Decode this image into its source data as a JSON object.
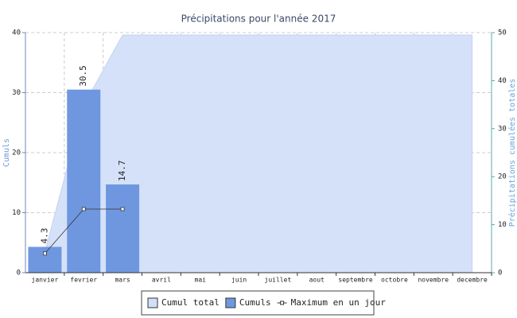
{
  "chart_data": {
    "type": "bar",
    "title": "Précipitations pour l'année 2017",
    "y_label": "Cumuls",
    "y2_label": "Précipitations cumulées totales",
    "categories": [
      "janvier",
      "fevrier",
      "mars",
      "avril",
      "mai",
      "juin",
      "juillet",
      "aout",
      "septembre",
      "octobre",
      "novembre",
      "decembre"
    ],
    "series": [
      {
        "name": "Cumul total",
        "type": "area",
        "axis": "y2",
        "color": "#d3dff8",
        "values": [
          4.3,
          34.8,
          49.5,
          49.5,
          49.5,
          49.5,
          49.5,
          49.5,
          49.5,
          49.5,
          49.5,
          49.5
        ]
      },
      {
        "name": "Cumuls",
        "type": "bar",
        "color": "#6f97e0",
        "values": [
          4.3,
          30.5,
          14.7,
          null,
          null,
          null,
          null,
          null,
          null,
          null,
          null,
          null
        ]
      },
      {
        "name": "Maximum en un jour",
        "type": "line",
        "color": "#333333",
        "values": [
          3.2,
          10.6,
          10.6,
          null,
          null,
          null,
          null,
          null,
          null,
          null,
          null,
          null
        ]
      }
    ],
    "ylim": [
      0,
      40
    ],
    "yticks": [
      0,
      10,
      20,
      30,
      40
    ],
    "y2lim": [
      0,
      50
    ],
    "y2ticks": [
      0,
      10,
      20,
      30,
      40,
      50
    ],
    "grid": true,
    "legend": "bottom"
  }
}
